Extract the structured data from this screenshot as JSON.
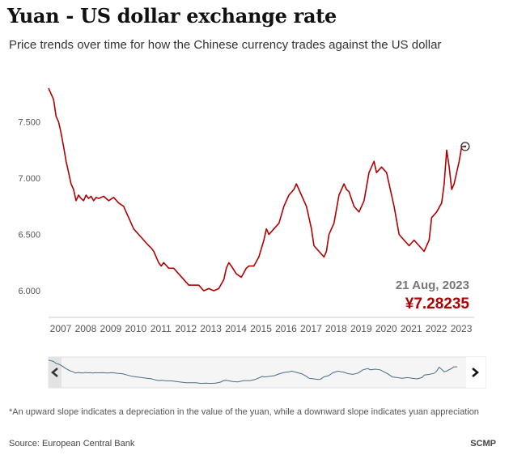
{
  "title": "Yuan - US dollar exchange rate",
  "subtitle": "Price trends over time for how the Chinese currency trades against the US dollar",
  "footnote": "*An upward slope indicates a depreciation in the value of the yuan, while a downward slope indicates yuan appreciation",
  "source": "Source: European Central Bank",
  "brand": "SCMP",
  "colors": {
    "line": "#b20000",
    "navigator_line": "#4a6b8a",
    "navigator_bg": "#eeeeee",
    "axis_text": "#555555"
  },
  "navigator": {
    "left_arrow": "chevron-left-icon",
    "right_arrow": "chevron-right-icon"
  },
  "chart_data": {
    "type": "line",
    "ylim": [
      5.85,
      7.85
    ],
    "xlim": [
      2007,
      2024
    ],
    "y_ticks": [
      "7.500",
      "7.000",
      "6.500",
      "6.000"
    ],
    "y_tick_values": [
      7.5,
      7.0,
      6.5,
      6.0
    ],
    "x_ticks": [
      "2007",
      "2008",
      "2009",
      "2010",
      "2011",
      "2012",
      "2013",
      "2014",
      "2015",
      "2016",
      "2017",
      "2018",
      "2019",
      "2020",
      "2021",
      "2022",
      "2023"
    ],
    "annotation": {
      "date": "21 Aug, 2023",
      "value": "¥7.28235",
      "x": 2023.64,
      "y": 7.28235
    },
    "series": [
      {
        "x": [
          2007.0,
          2007.1,
          2007.2,
          2007.3,
          2007.4,
          2007.5,
          2007.6,
          2007.7,
          2007.8,
          2007.9,
          2008.0,
          2008.1,
          2008.2,
          2008.3,
          2008.4,
          2008.5,
          2008.6,
          2008.7,
          2008.8,
          2008.9,
          2009.0,
          2009.2,
          2009.4,
          2009.6,
          2009.8,
          2010.0,
          2010.2,
          2010.4,
          2010.6,
          2010.8,
          2011.0,
          2011.1,
          2011.2,
          2011.3,
          2011.4,
          2011.5,
          2011.6,
          2011.8,
          2012.0,
          2012.2,
          2012.4,
          2012.6,
          2012.8,
          2013.0,
          2013.2,
          2013.4,
          2013.6,
          2013.8,
          2014.0,
          2014.1,
          2014.2,
          2014.3,
          2014.5,
          2014.7,
          2014.9,
          2015.0,
          2015.2,
          2015.4,
          2015.6,
          2015.7,
          2015.8,
          2016.0,
          2016.2,
          2016.4,
          2016.6,
          2016.8,
          2016.9,
          2017.0,
          2017.1,
          2017.3,
          2017.5,
          2017.6,
          2017.8,
          2018.0,
          2018.1,
          2018.2,
          2018.4,
          2018.6,
          2018.8,
          2018.9,
          2019.0,
          2019.2,
          2019.4,
          2019.6,
          2019.8,
          2019.9,
          2020.0,
          2020.1,
          2020.3,
          2020.5,
          2020.6,
          2020.8,
          2021.0,
          2021.2,
          2021.4,
          2021.6,
          2021.8,
          2022.0,
          2022.2,
          2022.3,
          2022.5,
          2022.7,
          2022.8,
          2022.9,
          2023.0,
          2023.1,
          2023.2,
          2023.4,
          2023.5,
          2023.64
        ],
        "values": [
          7.8,
          7.75,
          7.7,
          7.55,
          7.5,
          7.4,
          7.28,
          7.15,
          7.05,
          6.95,
          6.9,
          6.8,
          6.85,
          6.82,
          6.8,
          6.85,
          6.82,
          6.84,
          6.8,
          6.83,
          6.82,
          6.84,
          6.8,
          6.83,
          6.78,
          6.75,
          6.65,
          6.55,
          6.5,
          6.45,
          6.4,
          6.38,
          6.35,
          6.3,
          6.25,
          6.22,
          6.25,
          6.2,
          6.2,
          6.15,
          6.1,
          6.05,
          6.05,
          6.05,
          6.0,
          6.02,
          6.0,
          6.02,
          6.1,
          6.2,
          6.25,
          6.22,
          6.15,
          6.12,
          6.2,
          6.22,
          6.22,
          6.3,
          6.45,
          6.55,
          6.5,
          6.55,
          6.6,
          6.75,
          6.85,
          6.9,
          6.95,
          6.9,
          6.85,
          6.75,
          6.55,
          6.4,
          6.35,
          6.3,
          6.35,
          6.5,
          6.6,
          6.85,
          6.95,
          6.9,
          6.88,
          6.75,
          6.7,
          6.8,
          7.05,
          7.1,
          7.15,
          7.05,
          7.1,
          7.05,
          6.95,
          6.75,
          6.5,
          6.45,
          6.4,
          6.45,
          6.4,
          6.35,
          6.45,
          6.65,
          6.7,
          6.78,
          6.95,
          7.25,
          7.1,
          6.9,
          6.95,
          7.15,
          7.28,
          7.28235
        ]
      }
    ]
  }
}
